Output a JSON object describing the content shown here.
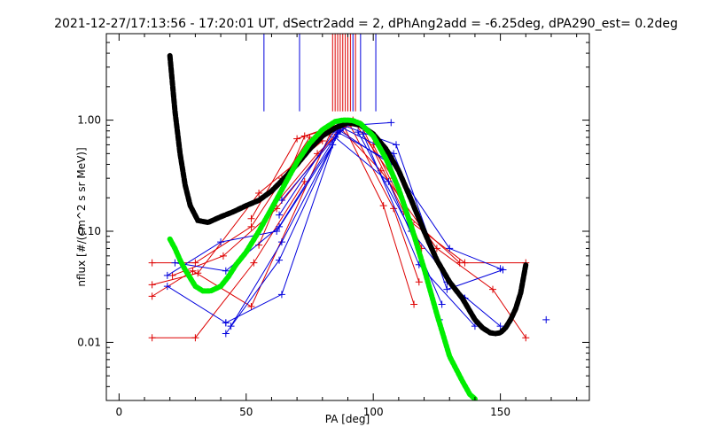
{
  "chart_data": {
    "type": "scatter",
    "title": "2021-12-27/17:13:56 - 17:20:01 UT, dSectr2add = 2, dPhAng2add = -6.25deg, dPA290_est=   0.2deg",
    "xlabel": "PA [deg]",
    "ylabel": "nflux [#/(cm^2 s sr MeV)]",
    "xlim": [
      -5,
      185
    ],
    "ylim": [
      0.003,
      6.0
    ],
    "yscale": "log",
    "x_ticks": [
      0,
      50,
      100,
      150
    ],
    "x_tick_labels": [
      "0",
      "50",
      "100",
      "150"
    ],
    "y_ticks": [
      0.01,
      0.1,
      1.0
    ],
    "y_tick_labels": [
      "0.01",
      "0.10",
      "1.00"
    ],
    "grid": false,
    "colors": {
      "red": "#dd0000",
      "blue": "#0000dd",
      "green": "#00ee00",
      "black": "#000000"
    },
    "vertical_markers": {
      "y_bottom": 1.2,
      "blue_x": [
        57,
        71,
        92,
        95,
        101
      ],
      "red_x": [
        84,
        85,
        86,
        87,
        88,
        89,
        90,
        91,
        93
      ]
    },
    "series": [
      {
        "color": "red",
        "style": "lines+plus",
        "x": [
          13,
          30,
          53,
          73
        ],
        "y": [
          0.011,
          0.011,
          0.052,
          0.28
        ]
      },
      {
        "color": "red",
        "style": "lines+plus",
        "x": [
          13,
          30,
          52,
          75
        ],
        "y": [
          0.052,
          0.052,
          0.11,
          0.7
        ]
      },
      {
        "color": "red",
        "style": "lines+plus",
        "x": [
          13,
          31,
          55,
          80
        ],
        "y": [
          0.033,
          0.042,
          0.22,
          0.65
        ]
      },
      {
        "color": "red",
        "style": "lines+plus",
        "x": [
          13,
          29,
          52,
          83
        ],
        "y": [
          0.026,
          0.044,
          0.021,
          0.75
        ]
      },
      {
        "color": "red",
        "style": "lines+plus",
        "x": [
          21,
          41,
          62,
          86
        ],
        "y": [
          0.04,
          0.06,
          0.16,
          0.8
        ]
      },
      {
        "color": "red",
        "style": "lines+plus",
        "x": [
          52,
          70,
          88,
          104,
          116
        ],
        "y": [
          0.13,
          0.68,
          0.92,
          0.17,
          0.022
        ]
      },
      {
        "color": "red",
        "style": "lines+plus",
        "x": [
          55,
          73,
          90,
          108,
          118
        ],
        "y": [
          0.075,
          0.72,
          0.98,
          0.16,
          0.035
        ]
      },
      {
        "color": "red",
        "style": "lines+plus",
        "x": [
          61,
          78,
          92,
          108,
          119
        ],
        "y": [
          0.17,
          0.5,
          1.0,
          0.3,
          0.07
        ]
      },
      {
        "color": "red",
        "style": "lines+plus",
        "x": [
          64,
          82,
          95,
          112,
          134
        ],
        "y": [
          0.3,
          0.8,
          0.92,
          0.15,
          0.052
        ]
      },
      {
        "color": "red",
        "style": "lines+plus",
        "x": [
          100,
          115,
          136,
          160
        ],
        "y": [
          0.6,
          0.12,
          0.052,
          0.052
        ]
      },
      {
        "color": "red",
        "style": "lines+plus",
        "x": [
          87,
          103,
          125,
          147,
          160
        ],
        "y": [
          0.85,
          0.35,
          0.07,
          0.03,
          0.011
        ]
      },
      {
        "color": "blue",
        "style": "lines+plus",
        "x": [
          19,
          42,
          64,
          86
        ],
        "y": [
          0.032,
          0.015,
          0.027,
          0.8
        ]
      },
      {
        "color": "blue",
        "style": "lines+plus",
        "x": [
          19,
          40,
          62,
          84
        ],
        "y": [
          0.04,
          0.08,
          0.1,
          0.6
        ]
      },
      {
        "color": "blue",
        "style": "lines+plus",
        "x": [
          22,
          42,
          63,
          85
        ],
        "y": [
          0.052,
          0.044,
          0.11,
          0.7
        ]
      },
      {
        "color": "blue",
        "style": "lines+plus",
        "x": [
          42,
          63,
          86
        ],
        "y": [
          0.012,
          0.055,
          0.75
        ]
      },
      {
        "color": "blue",
        "style": "lines+plus",
        "x": [
          44,
          64,
          87
        ],
        "y": [
          0.014,
          0.08,
          0.82
        ]
      },
      {
        "color": "blue",
        "style": "lines+plus",
        "x": [
          63,
          86,
          107
        ],
        "y": [
          0.14,
          0.88,
          0.95
        ]
      },
      {
        "color": "blue",
        "style": "lines+plus",
        "x": [
          64,
          87,
          107,
          126
        ],
        "y": [
          0.19,
          0.8,
          0.4,
          0.016
        ]
      },
      {
        "color": "blue",
        "style": "lines+plus",
        "x": [
          85,
          106,
          127
        ],
        "y": [
          0.7,
          0.28,
          0.022
        ]
      },
      {
        "color": "blue",
        "style": "lines+plus",
        "x": [
          86,
          107,
          130,
          150
        ],
        "y": [
          0.78,
          0.42,
          0.07,
          0.046
        ]
      },
      {
        "color": "blue",
        "style": "lines+plus",
        "x": [
          88,
          108,
          129,
          150
        ],
        "y": [
          0.85,
          0.5,
          0.035,
          0.014
        ]
      },
      {
        "color": "blue",
        "style": "lines+plus",
        "x": [
          88,
          109,
          129,
          151
        ],
        "y": [
          0.9,
          0.6,
          0.03,
          0.045
        ]
      },
      {
        "color": "blue",
        "style": "lines+plus",
        "x": [
          94,
          115,
          136
        ],
        "y": [
          0.78,
          0.1,
          0.025
        ]
      },
      {
        "color": "blue",
        "style": "lines+plus",
        "x": [
          96,
          118,
          140
        ],
        "y": [
          0.75,
          0.05,
          0.014
        ]
      },
      {
        "color": "blue",
        "style": "plus",
        "x": [
          168,
          42
        ],
        "y": [
          0.016,
          0.015
        ]
      },
      {
        "color": "black",
        "style": "thick-dashed-curve",
        "x": [
          20,
          22,
          24,
          26,
          28,
          31,
          35,
          40,
          45,
          50,
          55,
          60,
          65,
          70,
          75,
          80,
          85,
          90,
          95,
          100,
          105,
          110,
          115,
          120,
          125,
          130,
          135,
          140,
          143,
          146,
          148,
          150,
          152,
          154,
          156,
          158,
          160
        ],
        "y": [
          3.8,
          1.2,
          0.5,
          0.26,
          0.17,
          0.125,
          0.12,
          0.135,
          0.15,
          0.17,
          0.19,
          0.23,
          0.3,
          0.4,
          0.55,
          0.72,
          0.85,
          0.95,
          0.9,
          0.75,
          0.55,
          0.35,
          0.19,
          0.1,
          0.055,
          0.035,
          0.025,
          0.016,
          0.0135,
          0.0122,
          0.012,
          0.0122,
          0.0135,
          0.016,
          0.02,
          0.028,
          0.05
        ]
      },
      {
        "color": "green",
        "style": "thick-dotted-curve",
        "x": [
          20,
          22,
          24,
          26,
          28,
          30,
          33,
          36,
          40,
          43,
          46,
          50,
          55,
          60,
          65,
          70,
          75,
          80,
          85,
          88,
          90,
          92,
          95,
          100,
          105,
          110,
          115,
          120,
          125,
          130,
          135,
          138,
          140
        ],
        "y": [
          0.085,
          0.07,
          0.055,
          0.045,
          0.038,
          0.032,
          0.029,
          0.029,
          0.032,
          0.039,
          0.05,
          0.065,
          0.1,
          0.16,
          0.26,
          0.42,
          0.62,
          0.82,
          0.97,
          1.0,
          1.0,
          0.99,
          0.93,
          0.72,
          0.45,
          0.24,
          0.11,
          0.046,
          0.018,
          0.0075,
          0.0045,
          0.0034,
          0.0031
        ]
      }
    ]
  }
}
